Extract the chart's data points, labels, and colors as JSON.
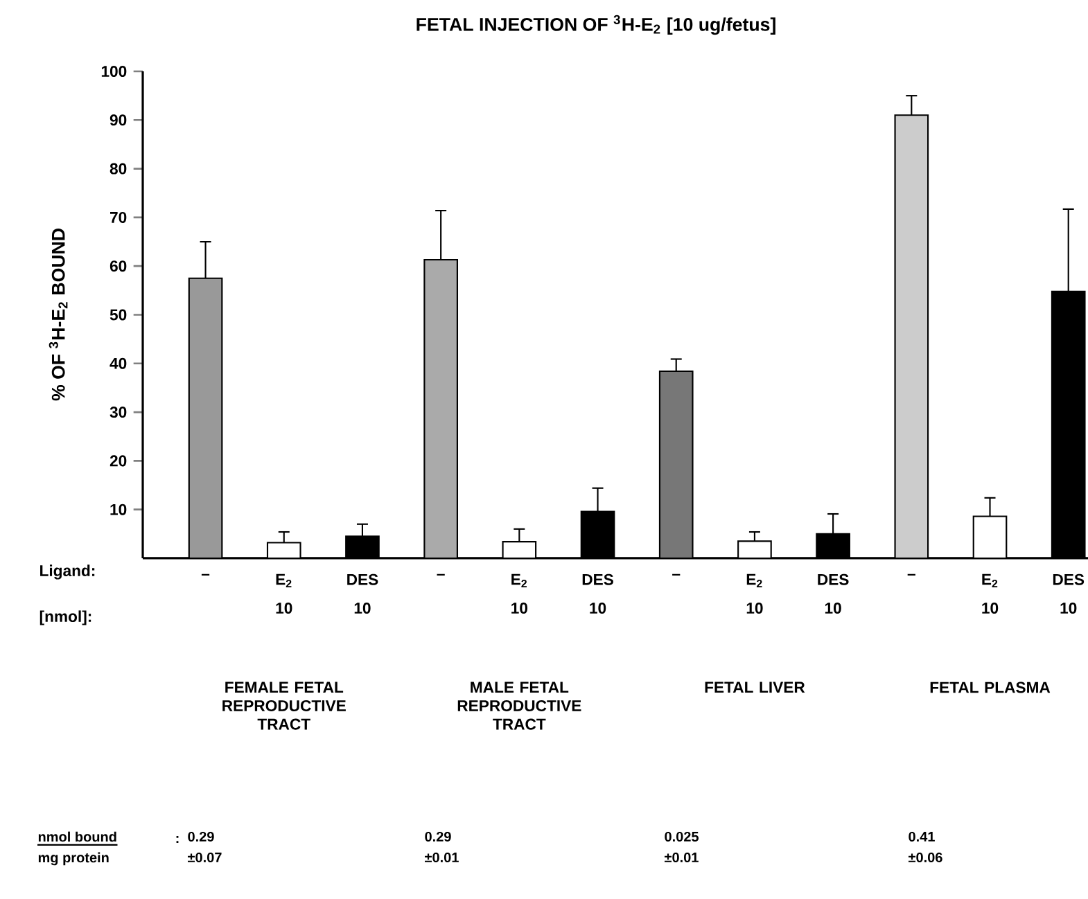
{
  "chart_data": {
    "type": "bar",
    "title": "FETAL INJECTION OF $^{3}$H-E$_{2}$ [10 ug/fetus]",
    "ylabel": "% OF $^{3}$H-E$_{2}$ BOUND",
    "categories": [
      "–",
      "E$_{2}$",
      "DES",
      "–",
      "E$_{2}$",
      "DES",
      "–",
      "E$_{2}$",
      "DES",
      "–",
      "E$_{2}$",
      "DES"
    ],
    "values": [
      57.5,
      3.2,
      4.5,
      61.3,
      3.4,
      9.6,
      38.4,
      3.5,
      5.0,
      91,
      8.6,
      54.8
    ],
    "colors": [
      "#999999",
      "#ffffff",
      "#000000",
      "#aaaaaa",
      "#ffffff",
      "#000000",
      "#777777",
      "#ffffff",
      "#000000",
      "#cccccc",
      "#ffffff",
      "#000000"
    ],
    "errors": [
      [
        57.5,
        65
      ],
      [
        3.2,
        5.4
      ],
      [
        4.5,
        7.0
      ],
      [
        61.3,
        71.4
      ],
      [
        3.4,
        6
      ],
      [
        9.6,
        14.4
      ],
      [
        38.4,
        40.9
      ],
      [
        3.5,
        5.4
      ],
      [
        5.0,
        9.1
      ],
      [
        91,
        95
      ],
      [
        8.6,
        12.4
      ],
      [
        54.8,
        71.7
      ]
    ],
    "ylim": [
      0,
      100
    ],
    "yticks": [
      10,
      20,
      30,
      40,
      50,
      60,
      70,
      80,
      90,
      100
    ],
    "annotations": [
      "Ligand:",
      "[nmol]:",
      "10",
      "10",
      "10",
      "10",
      "10",
      "10",
      "10",
      "10",
      "FEMALE FETAL REPRODUCTIVE TRACT",
      "MALE FETAL REPRODUCTIVE TRACT",
      "FETAL LIVER",
      "FETAL PLASMA",
      "nmol bound",
      "mg protein",
      ":",
      "0.29",
      "±0.07",
      "0.29",
      "±0.01",
      "0.025",
      "±0.01",
      "0.41",
      "±0.06"
    ]
  }
}
